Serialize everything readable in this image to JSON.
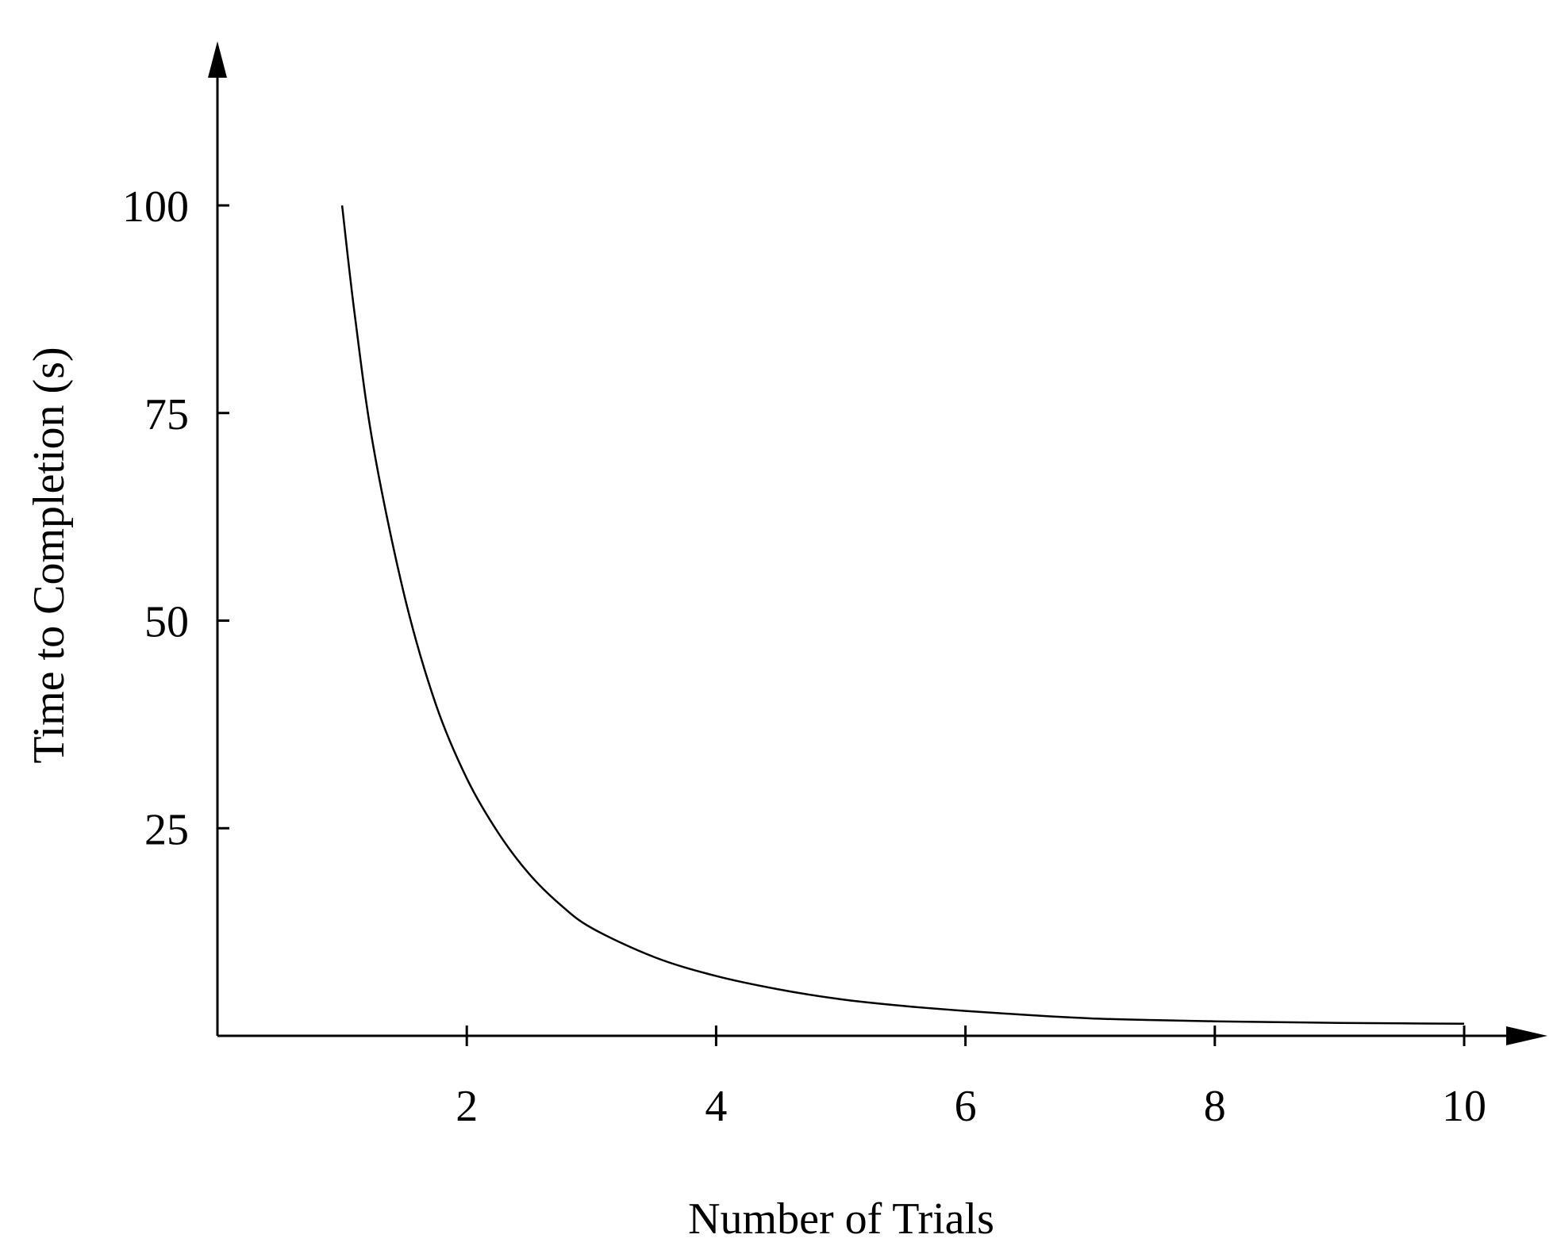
{
  "chart_data": {
    "type": "line",
    "title": "",
    "xlabel": "Number of Trials",
    "ylabel": "Time to Completion (s)",
    "xlim": [
      0,
      10
    ],
    "ylim": [
      0,
      110
    ],
    "x_ticks": [
      2,
      4,
      6,
      8,
      10
    ],
    "x_tick_labels": [
      "2",
      "4",
      "6",
      "8",
      "10"
    ],
    "y_ticks": [
      25,
      50,
      75,
      100
    ],
    "y_tick_labels": [
      "25",
      "50",
      "75",
      "100"
    ],
    "grid": false,
    "legend": "none",
    "series": [
      {
        "color": "#000000",
        "x": [
          1.0,
          1.1,
          1.25,
          1.5,
          1.75,
          2.0,
          2.25,
          2.5,
          2.75,
          3.0,
          3.5,
          4.0,
          4.5,
          5.0,
          5.5,
          6.0,
          6.5,
          7.0,
          7.5,
          8.0,
          8.5,
          9.0,
          9.5,
          10.0
        ],
        "y": [
          100,
          87,
          71,
          53,
          40,
          31,
          24.5,
          19.5,
          15.8,
          13,
          9.5,
          7.2,
          5.6,
          4.4,
          3.6,
          3.0,
          2.5,
          2.1,
          1.9,
          1.75,
          1.65,
          1.55,
          1.5,
          1.45
        ]
      }
    ]
  }
}
